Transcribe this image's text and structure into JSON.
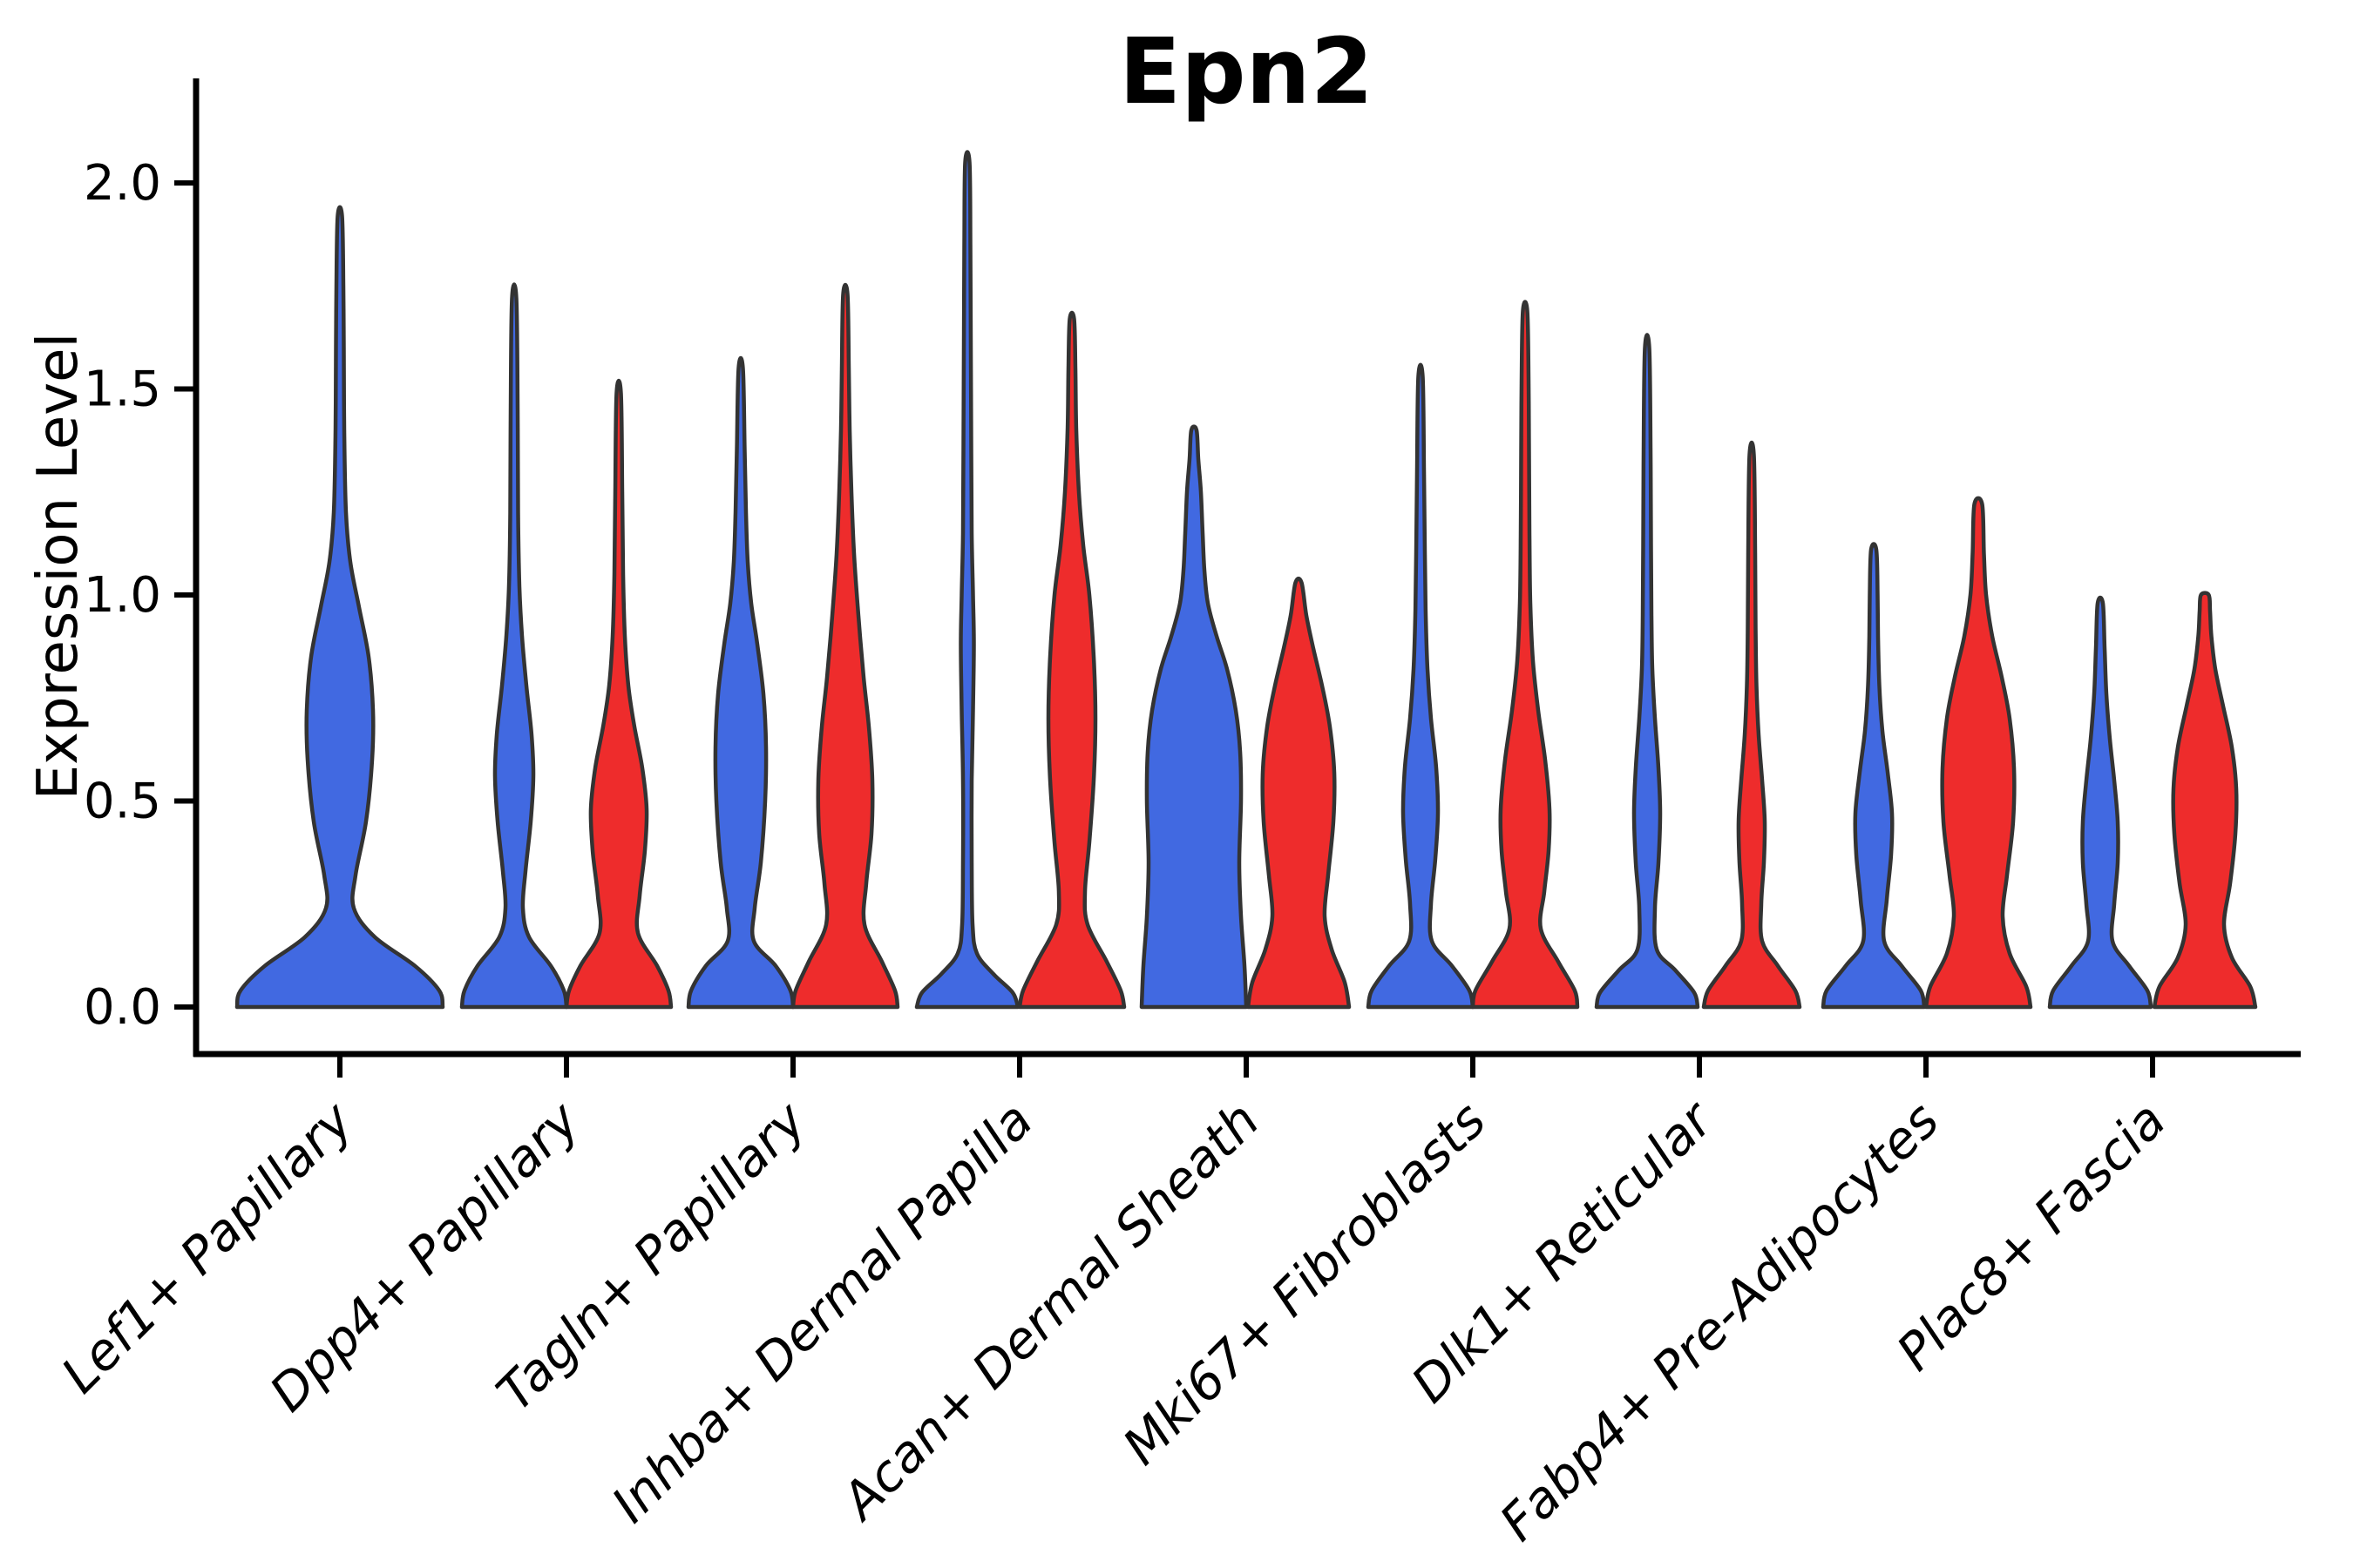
{
  "title": "Epn2",
  "axes": {
    "ylabel": "Expression Level",
    "ytick_labels": [
      "0.0",
      "0.5",
      "1.0",
      "1.5",
      "2.0"
    ],
    "ytick_values": [
      0.0,
      0.5,
      1.0,
      1.5,
      2.0
    ]
  },
  "colors": {
    "blue": "#4169E1",
    "red": "#EE2C2C",
    "outline": "#333333",
    "axis": "#000000",
    "background": "#ffffff"
  },
  "chart_data": {
    "type": "violin",
    "subtype": "split-violin",
    "title": "Epn2",
    "xlabel": "",
    "ylabel": "Expression Level",
    "ylim": [
      0.0,
      2.15
    ],
    "yticks": [
      0.0,
      0.5,
      1.0,
      1.5,
      2.0
    ],
    "grid": false,
    "legend": "none",
    "split_groups": [
      {
        "name": "blue",
        "color": "#4169E1"
      },
      {
        "name": "red",
        "color": "#EE2C2C"
      }
    ],
    "categories": [
      "Lef1+ Papillary",
      "Dpp4+ Papillary",
      "Tagln+ Papillary",
      "Inhba+ Dermal Papilla",
      "Acan+ Dermal Sheath",
      "Mki67+ Fibroblasts",
      "Dlk1+ Reticular",
      "Fabp4+ Pre-Adipocytes",
      "Plac8+ Fascia"
    ],
    "violins": [
      {
        "category": "Lef1+ Papillary",
        "group": "blue",
        "single": true,
        "max_expression": 1.92,
        "profile": [
          [
            0,
            118
          ],
          [
            0.04,
            114
          ],
          [
            0.1,
            86
          ],
          [
            0.17,
            40
          ],
          [
            0.24,
            16
          ],
          [
            0.32,
            18
          ],
          [
            0.45,
            30
          ],
          [
            0.6,
            37
          ],
          [
            0.72,
            38
          ],
          [
            0.85,
            33
          ],
          [
            0.97,
            22
          ],
          [
            1.08,
            12
          ],
          [
            1.2,
            7
          ],
          [
            1.4,
            5
          ],
          [
            1.6,
            4.5
          ],
          [
            1.75,
            4
          ],
          [
            1.92,
            2.5
          ]
        ]
      },
      {
        "category": "Dpp4+ Papillary",
        "group": "blue",
        "single": false,
        "max_expression": 1.72,
        "profile": [
          [
            0,
            60
          ],
          [
            0.04,
            57
          ],
          [
            0.1,
            42
          ],
          [
            0.17,
            17
          ],
          [
            0.24,
            10
          ],
          [
            0.33,
            13
          ],
          [
            0.45,
            19
          ],
          [
            0.56,
            22
          ],
          [
            0.66,
            20
          ],
          [
            0.78,
            14
          ],
          [
            0.9,
            9
          ],
          [
            1.02,
            6
          ],
          [
            1.2,
            4.5
          ],
          [
            1.45,
            4
          ],
          [
            1.72,
            2.5
          ]
        ]
      },
      {
        "category": "Dpp4+ Papillary",
        "group": "red",
        "single": false,
        "max_expression": 1.49,
        "profile": [
          [
            0,
            60
          ],
          [
            0.04,
            57
          ],
          [
            0.1,
            44
          ],
          [
            0.18,
            22
          ],
          [
            0.27,
            24
          ],
          [
            0.38,
            30
          ],
          [
            0.48,
            32
          ],
          [
            0.58,
            27
          ],
          [
            0.68,
            18
          ],
          [
            0.78,
            11
          ],
          [
            0.9,
            7
          ],
          [
            1.05,
            5
          ],
          [
            1.25,
            4
          ],
          [
            1.49,
            2.5
          ]
        ]
      },
      {
        "category": "Tagln+ Papillary",
        "group": "blue",
        "single": false,
        "max_expression": 1.55,
        "profile": [
          [
            0,
            60
          ],
          [
            0.04,
            57
          ],
          [
            0.1,
            40
          ],
          [
            0.16,
            15
          ],
          [
            0.24,
            16
          ],
          [
            0.35,
            23
          ],
          [
            0.5,
            28
          ],
          [
            0.63,
            29
          ],
          [
            0.76,
            26
          ],
          [
            0.88,
            19
          ],
          [
            0.98,
            12
          ],
          [
            1.08,
            8
          ],
          [
            1.2,
            6
          ],
          [
            1.35,
            4.5
          ],
          [
            1.55,
            2.5
          ]
        ]
      },
      {
        "category": "Tagln+ Papillary",
        "group": "red",
        "single": false,
        "max_expression": 1.73,
        "profile": [
          [
            0,
            60
          ],
          [
            0.04,
            57
          ],
          [
            0.11,
            42
          ],
          [
            0.2,
            22
          ],
          [
            0.3,
            24
          ],
          [
            0.42,
            30
          ],
          [
            0.55,
            31
          ],
          [
            0.68,
            27
          ],
          [
            0.8,
            21
          ],
          [
            0.95,
            15
          ],
          [
            1.1,
            10
          ],
          [
            1.25,
            7
          ],
          [
            1.4,
            5
          ],
          [
            1.55,
            4
          ],
          [
            1.73,
            2.5
          ]
        ]
      },
      {
        "category": "Inhba+ Dermal Papilla",
        "group": "blue",
        "single": false,
        "max_expression": 2.05,
        "profile": [
          [
            0,
            58
          ],
          [
            0.035,
            52
          ],
          [
            0.08,
            30
          ],
          [
            0.13,
            11
          ],
          [
            0.2,
            6
          ],
          [
            0.35,
            5
          ],
          [
            0.55,
            5
          ],
          [
            0.72,
            6.5
          ],
          [
            0.88,
            7.5
          ],
          [
            1.0,
            6.5
          ],
          [
            1.15,
            5
          ],
          [
            1.35,
            4.5
          ],
          [
            1.6,
            4
          ],
          [
            1.85,
            3.5
          ],
          [
            2.05,
            2.5
          ]
        ]
      },
      {
        "category": "Inhba+ Dermal Papilla",
        "group": "red",
        "single": false,
        "max_expression": 1.67,
        "profile": [
          [
            0,
            60
          ],
          [
            0.04,
            56
          ],
          [
            0.11,
            40
          ],
          [
            0.2,
            18
          ],
          [
            0.28,
            15
          ],
          [
            0.4,
            20
          ],
          [
            0.55,
            25
          ],
          [
            0.7,
            27
          ],
          [
            0.85,
            25
          ],
          [
            1.0,
            20
          ],
          [
            1.12,
            13
          ],
          [
            1.25,
            8
          ],
          [
            1.4,
            5
          ],
          [
            1.55,
            4
          ],
          [
            1.67,
            2.5
          ]
        ]
      },
      {
        "category": "Acan+ Dermal Sheath",
        "group": "blue",
        "single": false,
        "max_expression": 1.4,
        "profile": [
          [
            0,
            60
          ],
          [
            0.1,
            58
          ],
          [
            0.22,
            54
          ],
          [
            0.35,
            52
          ],
          [
            0.5,
            54
          ],
          [
            0.62,
            53
          ],
          [
            0.72,
            48
          ],
          [
            0.82,
            38
          ],
          [
            0.9,
            26
          ],
          [
            0.98,
            16
          ],
          [
            1.06,
            12
          ],
          [
            1.15,
            10
          ],
          [
            1.25,
            8
          ],
          [
            1.33,
            5
          ],
          [
            1.4,
            3
          ]
        ]
      },
      {
        "category": "Acan+ Dermal Sheath",
        "group": "red",
        "single": false,
        "max_expression": 1.03,
        "profile": [
          [
            0,
            58
          ],
          [
            0.06,
            53
          ],
          [
            0.14,
            38
          ],
          [
            0.22,
            30
          ],
          [
            0.32,
            34
          ],
          [
            0.45,
            40
          ],
          [
            0.57,
            41
          ],
          [
            0.68,
            36
          ],
          [
            0.78,
            27
          ],
          [
            0.87,
            17
          ],
          [
            0.95,
            9
          ],
          [
            1.03,
            3.5
          ]
        ]
      },
      {
        "category": "Mki67+ Fibroblasts",
        "group": "blue",
        "single": false,
        "max_expression": 1.53,
        "profile": [
          [
            0,
            60
          ],
          [
            0.04,
            56
          ],
          [
            0.1,
            36
          ],
          [
            0.16,
            13
          ],
          [
            0.25,
            12
          ],
          [
            0.36,
            17
          ],
          [
            0.47,
            20
          ],
          [
            0.58,
            18
          ],
          [
            0.7,
            12
          ],
          [
            0.82,
            8
          ],
          [
            0.95,
            6
          ],
          [
            1.1,
            5
          ],
          [
            1.3,
            4
          ],
          [
            1.53,
            2.5
          ]
        ]
      },
      {
        "category": "Mki67+ Fibroblasts",
        "group": "red",
        "single": false,
        "max_expression": 1.69,
        "profile": [
          [
            0,
            60
          ],
          [
            0.04,
            57
          ],
          [
            0.11,
            38
          ],
          [
            0.19,
            18
          ],
          [
            0.28,
            22
          ],
          [
            0.38,
            27
          ],
          [
            0.48,
            28
          ],
          [
            0.6,
            23
          ],
          [
            0.72,
            15
          ],
          [
            0.84,
            9
          ],
          [
            0.98,
            6
          ],
          [
            1.15,
            5
          ],
          [
            1.35,
            4.5
          ],
          [
            1.52,
            4
          ],
          [
            1.69,
            2.5
          ]
        ]
      },
      {
        "category": "Dlk1+ Reticular",
        "group": "blue",
        "single": false,
        "max_expression": 1.6,
        "profile": [
          [
            0,
            58
          ],
          [
            0.035,
            54
          ],
          [
            0.09,
            32
          ],
          [
            0.14,
            11
          ],
          [
            0.24,
            9
          ],
          [
            0.35,
            13
          ],
          [
            0.47,
            15
          ],
          [
            0.58,
            13
          ],
          [
            0.7,
            9
          ],
          [
            0.82,
            6
          ],
          [
            0.95,
            5
          ],
          [
            1.12,
            4.5
          ],
          [
            1.35,
            4
          ],
          [
            1.6,
            2.5
          ]
        ]
      },
      {
        "category": "Dlk1+ Reticular",
        "group": "red",
        "single": false,
        "max_expression": 1.34,
        "profile": [
          [
            0,
            55
          ],
          [
            0.04,
            50
          ],
          [
            0.1,
            30
          ],
          [
            0.16,
            12
          ],
          [
            0.25,
            11
          ],
          [
            0.35,
            14
          ],
          [
            0.45,
            15
          ],
          [
            0.55,
            12
          ],
          [
            0.66,
            8
          ],
          [
            0.78,
            5.5
          ],
          [
            0.92,
            4.5
          ],
          [
            1.1,
            4
          ],
          [
            1.34,
            2.5
          ]
        ]
      },
      {
        "category": "Fabp4+ Pre-Adipocytes",
        "group": "blue",
        "single": false,
        "max_expression": 1.11,
        "profile": [
          [
            0,
            58
          ],
          [
            0.04,
            54
          ],
          [
            0.1,
            32
          ],
          [
            0.16,
            12
          ],
          [
            0.26,
            15
          ],
          [
            0.37,
            20
          ],
          [
            0.47,
            21
          ],
          [
            0.57,
            16
          ],
          [
            0.67,
            10
          ],
          [
            0.78,
            6.5
          ],
          [
            0.9,
            5
          ],
          [
            1.0,
            4.5
          ],
          [
            1.11,
            3
          ]
        ]
      },
      {
        "category": "Fabp4+ Pre-Adipocytes",
        "group": "red",
        "single": false,
        "max_expression": 1.22,
        "profile": [
          [
            0,
            60
          ],
          [
            0.05,
            55
          ],
          [
            0.13,
            36
          ],
          [
            0.22,
            28
          ],
          [
            0.32,
            33
          ],
          [
            0.45,
            40
          ],
          [
            0.58,
            41
          ],
          [
            0.7,
            36
          ],
          [
            0.8,
            27
          ],
          [
            0.9,
            16
          ],
          [
            1.0,
            9
          ],
          [
            1.1,
            6.5
          ],
          [
            1.22,
            4.5
          ]
        ]
      },
      {
        "category": "Plac8+ Fascia",
        "group": "blue",
        "single": false,
        "max_expression": 0.98,
        "profile": [
          [
            0,
            58
          ],
          [
            0.04,
            54
          ],
          [
            0.1,
            33
          ],
          [
            0.16,
            14
          ],
          [
            0.25,
            16
          ],
          [
            0.35,
            20
          ],
          [
            0.45,
            20
          ],
          [
            0.55,
            16
          ],
          [
            0.65,
            11
          ],
          [
            0.76,
            7
          ],
          [
            0.87,
            5
          ],
          [
            0.98,
            3
          ]
        ]
      },
      {
        "category": "Plac8+ Fascia",
        "group": "red",
        "single": false,
        "max_expression": 1.0,
        "profile": [
          [
            0,
            58
          ],
          [
            0.05,
            52
          ],
          [
            0.12,
            31
          ],
          [
            0.2,
            22
          ],
          [
            0.3,
            29
          ],
          [
            0.42,
            35
          ],
          [
            0.53,
            36
          ],
          [
            0.63,
            31
          ],
          [
            0.73,
            21
          ],
          [
            0.82,
            12
          ],
          [
            0.9,
            7.5
          ],
          [
            0.96,
            6
          ],
          [
            1.0,
            4.5
          ]
        ]
      }
    ]
  }
}
